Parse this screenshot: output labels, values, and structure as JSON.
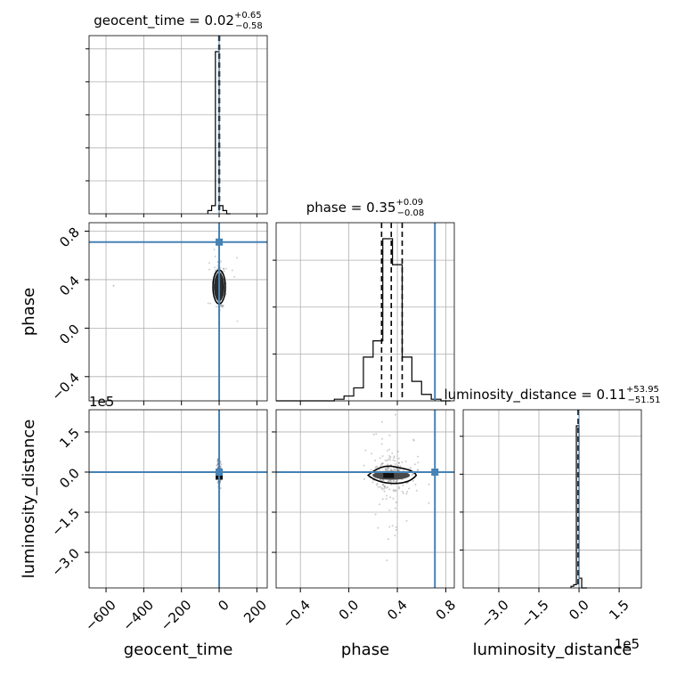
{
  "chart_data": {
    "type": "scatter",
    "plot_kind": "corner plot",
    "parameters": [
      "geocent_time",
      "phase",
      "luminosity_distance"
    ],
    "titles": {
      "geocent_time": {
        "prefix": "geocent_time = ",
        "median": "0.02",
        "plus": "+0.65",
        "minus": "−0.58"
      },
      "phase": {
        "prefix": "phase = ",
        "median": "0.35",
        "plus": "+0.09",
        "minus": "−0.08"
      },
      "luminosity_distance": {
        "prefix": "luminosity_distance = ",
        "median": "0.11",
        "plus": "+53.95",
        "minus": "−51.51"
      }
    },
    "axis_labels": {
      "geocent_time": "geocent_time",
      "phase": "phase",
      "luminosity_distance": "luminosity_distance"
    },
    "offset_text": {
      "luminosity_distance_y": "1e5",
      "luminosity_distance_x": "1e5"
    },
    "ranges": {
      "geocent_time": [
        -690,
        255
      ],
      "phase": [
        -0.6,
        0.87
      ],
      "luminosity_distance": [
        -4.33,
        2.33
      ]
    },
    "ticks": {
      "geocent_time": [
        -600,
        -400,
        -200,
        0,
        200
      ],
      "phase_x": [
        -0.4,
        0.0,
        0.4,
        0.8
      ],
      "phase_y": [
        -0.4,
        0.0,
        0.4,
        0.8
      ],
      "luminosity_distance": [
        -3.0,
        -1.5,
        0.0,
        1.5
      ]
    },
    "tick_labels": {
      "geocent_time": [
        "−600",
        "−400",
        "−200",
        "0",
        "200"
      ],
      "phase": [
        "−0.4",
        "0.0",
        "0.4",
        "0.8"
      ],
      "luminosity_distance": [
        "−3.0",
        "−1.5",
        "0.0",
        "1.5"
      ]
    },
    "truth": {
      "geocent_time": 0,
      "phase": 0.71,
      "luminosity_distance": 0.0
    },
    "quantiles": {
      "geocent_time": [
        -0.56,
        0.02,
        0.67
      ],
      "phase": [
        0.27,
        0.35,
        0.44
      ],
      "luminosity_distance": [
        -0.0005,
        0.0,
        0.0005
      ]
    },
    "histograms": {
      "geocent_time": {
        "edges": [
          -60,
          -40,
          -20,
          0,
          20,
          40,
          60
        ],
        "counts": [
          0.02,
          0.05,
          1.0,
          0.05,
          0.02,
          0.0
        ]
      },
      "phase": {
        "edges": [
          -0.6,
          -0.52,
          -0.44,
          -0.36,
          -0.28,
          -0.2,
          -0.12,
          -0.04,
          0.04,
          0.12,
          0.2,
          0.28,
          0.36,
          0.44,
          0.52,
          0.6,
          0.68,
          0.76,
          0.84
        ],
        "counts": [
          0,
          0,
          0,
          0,
          0,
          0,
          0.01,
          0.03,
          0.08,
          0.27,
          0.37,
          1.0,
          0.84,
          0.27,
          0.12,
          0.04,
          0.01,
          0
        ]
      },
      "luminosity_distance": {
        "edges": [
          -0.3,
          -0.2,
          -0.1,
          0.0,
          0.1,
          0.2,
          0.3
        ],
        "counts": [
          0.01,
          0.02,
          1.0,
          0.06,
          0.0,
          0.0
        ]
      }
    },
    "grid": true,
    "colors": {
      "truth": "#4682b4",
      "samples": "#000000",
      "grid": "#b0b0b0"
    }
  }
}
